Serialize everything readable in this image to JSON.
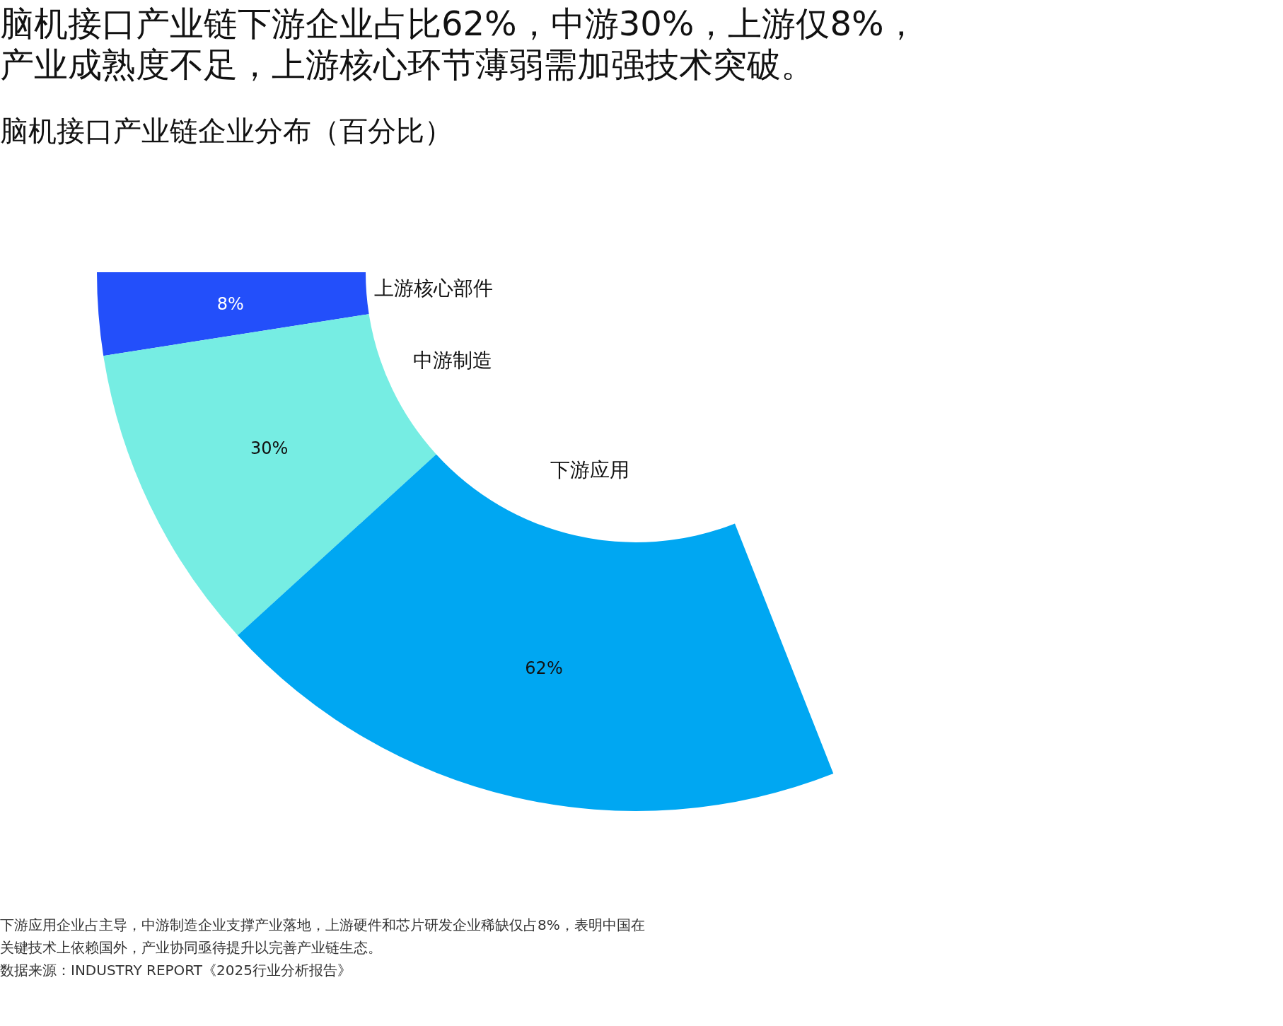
{
  "chart_data": {
    "type": "donut",
    "title": "脑机接口产业链下游企业占比62%，中游30%，上游仅8%，产业成熟度不足，上游核心环节薄弱需加强技术突破。",
    "subtitle": "脑机接口产业链企业分布（百分比）",
    "categories": [
      "上游核心部件",
      "中游制造",
      "下游应用"
    ],
    "values": [
      8,
      30,
      62
    ],
    "colors": [
      "#234ffa",
      "#76ede3",
      "#00a7f2"
    ],
    "value_labels": [
      "8%",
      "30%",
      "62%"
    ],
    "annotations": [
      "下游应用企业占主导，中游制造企业支撑产业落地，上游硬件和芯片研发企业稀缺仅占8%，表明中国在关键技术上依赖国外，产业协同亟待提升以完善产业链生态。",
      "数据来源：INDUSTRY REPORT《2025行业分析报告》"
    ]
  }
}
